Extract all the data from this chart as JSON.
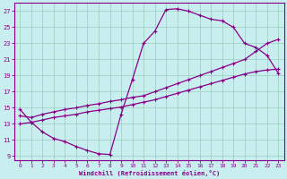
{
  "xlabel": "Windchill (Refroidissement éolien,°C)",
  "xlim": [
    -0.5,
    23.5
  ],
  "ylim": [
    8.5,
    28
  ],
  "xticks": [
    0,
    1,
    2,
    3,
    4,
    5,
    6,
    7,
    8,
    9,
    10,
    11,
    12,
    13,
    14,
    15,
    16,
    17,
    18,
    19,
    20,
    21,
    22,
    23
  ],
  "yticks": [
    9,
    11,
    13,
    15,
    17,
    19,
    21,
    23,
    25,
    27
  ],
  "bg_color": "#c8eef0",
  "line_color": "#880088",
  "grid_color": "#99ccbb",
  "curve1_x": [
    0,
    1,
    2,
    3,
    4,
    5,
    6,
    7,
    8,
    9,
    10,
    11,
    12,
    13,
    14,
    15,
    16,
    17,
    18,
    19,
    20,
    21,
    22,
    23
  ],
  "curve1_y": [
    14.8,
    13.2,
    12.0,
    11.2,
    10.8,
    10.2,
    9.7,
    9.3,
    9.2,
    14.2,
    18.5,
    23.0,
    24.5,
    27.2,
    27.3,
    27.0,
    26.5,
    26.0,
    25.8,
    25.0,
    23.0,
    22.5,
    21.5,
    19.3
  ],
  "curve2_x": [
    0,
    1,
    2,
    3,
    4,
    5,
    6,
    7,
    8,
    9,
    10,
    11,
    12,
    13,
    14,
    15,
    16,
    17,
    18,
    19,
    20,
    21,
    22,
    23
  ],
  "curve2_y": [
    14.0,
    13.8,
    14.2,
    14.5,
    14.8,
    15.0,
    15.3,
    15.5,
    15.8,
    16.0,
    16.3,
    16.5,
    17.0,
    17.5,
    18.0,
    18.5,
    19.0,
    19.5,
    20.0,
    20.5,
    21.0,
    22.0,
    23.0,
    23.5
  ],
  "curve3_x": [
    0,
    1,
    2,
    3,
    4,
    5,
    6,
    7,
    8,
    9,
    10,
    11,
    12,
    13,
    14,
    15,
    16,
    17,
    18,
    19,
    20,
    21,
    22,
    23
  ],
  "curve3_y": [
    13.0,
    13.2,
    13.5,
    13.8,
    14.0,
    14.2,
    14.5,
    14.7,
    14.9,
    15.1,
    15.4,
    15.7,
    16.0,
    16.4,
    16.8,
    17.2,
    17.6,
    18.0,
    18.4,
    18.8,
    19.2,
    19.5,
    19.7,
    19.8
  ]
}
